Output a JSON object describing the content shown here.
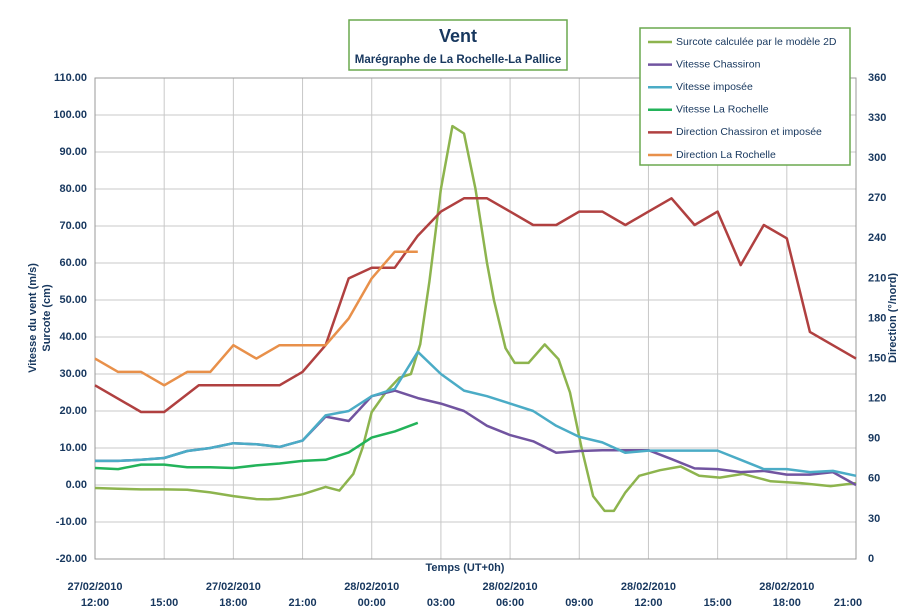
{
  "chart_data": {
    "type": "line",
    "title": "Vent",
    "subtitle": "Marégraphe de La Rochelle-La Pallice",
    "xlabel": "Temps (UT+0h)",
    "ylabel": [
      "Vitesse du vent (m/s)",
      "Surcote (cm)"
    ],
    "y2label": "Direction (°/nord)",
    "xlim": [
      0,
      33
    ],
    "xticks": [
      {
        "value": 0,
        "label": "12:00",
        "date": "27/02/2010"
      },
      {
        "value": 3,
        "label": "15:00"
      },
      {
        "value": 6,
        "label": "18:00",
        "date": "27/02/2010"
      },
      {
        "value": 9,
        "label": "21:00"
      },
      {
        "value": 12,
        "label": "00:00",
        "date": "28/02/2010"
      },
      {
        "value": 15,
        "label": "03:00"
      },
      {
        "value": 18,
        "label": "06:00",
        "date": "28/02/2010"
      },
      {
        "value": 21,
        "label": "09:00"
      },
      {
        "value": 24,
        "label": "12:00",
        "date": "28/02/2010"
      },
      {
        "value": 27,
        "label": "15:00"
      },
      {
        "value": 30,
        "label": "18:00",
        "date": "28/02/2010"
      },
      {
        "value": 33,
        "label": "21:00"
      }
    ],
    "ylim": [
      -20,
      110
    ],
    "yticks": [
      {
        "value": -20,
        "label": "-20.00"
      },
      {
        "value": -10,
        "label": "-10.00"
      },
      {
        "value": 0,
        "label": "0.00"
      },
      {
        "value": 10,
        "label": "10.00"
      },
      {
        "value": 20,
        "label": "20.00"
      },
      {
        "value": 30,
        "label": "30.00"
      },
      {
        "value": 40,
        "label": "40.00"
      },
      {
        "value": 50,
        "label": "50.00"
      },
      {
        "value": 60,
        "label": "60.00"
      },
      {
        "value": 70,
        "label": "70.00"
      },
      {
        "value": 80,
        "label": "80.00"
      },
      {
        "value": 90,
        "label": "90.00"
      },
      {
        "value": 100,
        "label": "100.00"
      },
      {
        "value": 110,
        "label": "110.00"
      }
    ],
    "y2lim": [
      0,
      360
    ],
    "y2ticks": [
      0,
      30,
      60,
      90,
      120,
      150,
      180,
      210,
      240,
      270,
      300,
      330,
      360
    ],
    "grid": true,
    "series": [
      {
        "name": "Surcote calculée par le modèle 2D",
        "color": "#8db44e",
        "x": [
          0,
          1,
          2,
          3,
          4,
          5,
          6,
          7,
          7.5,
          8,
          9,
          10,
          10.6,
          11.2,
          11.6,
          12,
          12.6,
          13.2,
          13.7,
          14.1,
          14.5,
          15,
          15.5,
          16,
          16.5,
          17,
          17.3,
          17.8,
          18.2,
          18.8,
          19.5,
          20.1,
          20.6,
          21.1,
          21.6,
          22.1,
          22.5,
          23,
          23.6,
          24.5,
          25.4,
          26.2,
          27.1,
          28.1,
          29.3,
          30.6,
          31.9,
          33
        ],
        "values": [
          -0.8,
          -1,
          -1.2,
          -1.2,
          -1.3,
          -2,
          -3,
          -3.8,
          -3.9,
          -3.7,
          -2.5,
          -0.5,
          -1.5,
          3,
          10,
          19.7,
          25,
          29,
          30,
          38,
          55,
          80,
          97,
          95,
          80,
          60,
          50,
          37,
          33,
          33,
          38,
          34,
          25,
          10,
          -3,
          -7,
          -7,
          -2,
          2.5,
          4,
          5,
          2.5,
          2,
          3,
          1,
          0.5,
          -0.3,
          0.5
        ]
      },
      {
        "name": "Vitesse Chassiron",
        "color": "#7154a0",
        "x": [
          0,
          1,
          2,
          3,
          4,
          5,
          6,
          7,
          8,
          9,
          10,
          11,
          12,
          13,
          14,
          15,
          16,
          17,
          18,
          19,
          20,
          21,
          22,
          24,
          25,
          26,
          27,
          28,
          29,
          30,
          31,
          32,
          33
        ],
        "values": [
          6.5,
          6.5,
          6.8,
          7.3,
          9.2,
          10,
          11.3,
          11,
          10.3,
          12,
          18.5,
          17.3,
          24,
          25.5,
          23.5,
          22,
          20,
          16,
          13.5,
          11.8,
          8.7,
          9.2,
          9.4,
          9.4,
          7,
          4.5,
          4.3,
          3.5,
          3.8,
          2.8,
          2.8,
          3.5,
          0
        ]
      },
      {
        "name": "Vitesse imposée",
        "color": "#4bacc6",
        "x": [
          0,
          1,
          2,
          3,
          4,
          5,
          6,
          7,
          8,
          9,
          10,
          11,
          12,
          13,
          14,
          15,
          16,
          17,
          18,
          19,
          20,
          21,
          22,
          23,
          24,
          25,
          26,
          27,
          28,
          29,
          30,
          31,
          32,
          33
        ],
        "values": [
          6.5,
          6.5,
          6.8,
          7.3,
          9.2,
          10,
          11.3,
          11,
          10.3,
          12,
          18.8,
          20,
          24,
          26,
          36,
          30,
          25.5,
          24,
          22,
          20,
          16,
          13,
          11.5,
          8.7,
          9.3,
          9.3,
          9.3,
          9.3,
          6.8,
          4.3,
          4.3,
          3.5,
          3.8,
          2.5
        ]
      },
      {
        "name": "Vitesse La Rochelle",
        "color": "#23b35a",
        "x": [
          0,
          1,
          2,
          3,
          4,
          5,
          6,
          7,
          8,
          9,
          10,
          11,
          12,
          13,
          14
        ],
        "values": [
          4.6,
          4.3,
          5.5,
          5.5,
          4.8,
          4.8,
          4.6,
          5.3,
          5.8,
          6.5,
          6.8,
          8.8,
          12.8,
          14.5,
          16.8
        ]
      },
      {
        "name": "Direction Chassiron et imposée",
        "color": "#b04040",
        "axis": "y2",
        "x": [
          0,
          2,
          3,
          4.5,
          6,
          8,
          9,
          10,
          11,
          12,
          13,
          14,
          15,
          16,
          17,
          18,
          19,
          20,
          21,
          22,
          23,
          24,
          25,
          26,
          27,
          28,
          29,
          30,
          31,
          33
        ],
        "values": [
          130,
          110,
          110,
          130,
          130,
          130,
          140,
          160,
          210,
          218,
          218,
          242,
          260,
          270,
          270,
          260,
          250,
          250,
          260,
          260,
          250,
          260,
          270,
          250,
          260,
          220,
          250,
          240,
          170,
          150
        ]
      },
      {
        "name": "Direction La Rochelle",
        "color": "#e8904a",
        "axis": "y2",
        "x": [
          0,
          1,
          2,
          3,
          4,
          5,
          6,
          7,
          8,
          9,
          10,
          11,
          12,
          13,
          14
        ],
        "values": [
          150,
          140,
          140,
          130,
          140,
          140,
          160,
          150,
          160,
          160,
          160,
          180,
          210,
          230,
          230
        ]
      }
    ]
  }
}
